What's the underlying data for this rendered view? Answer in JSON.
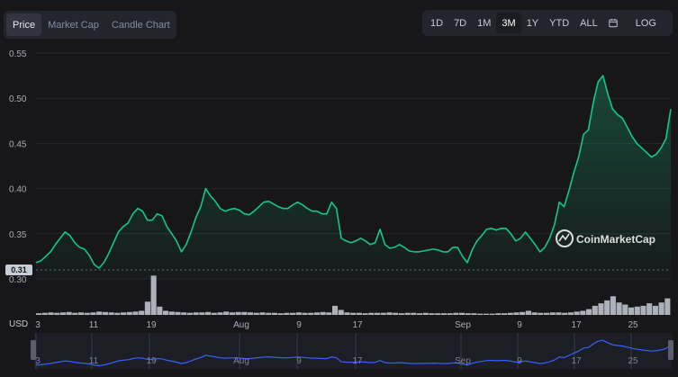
{
  "tabs": [
    {
      "label": "Price",
      "active": true
    },
    {
      "label": "Market Cap",
      "active": false
    },
    {
      "label": "Candle Chart",
      "active": false
    }
  ],
  "ranges": [
    {
      "label": "1D",
      "active": false
    },
    {
      "label": "7D",
      "active": false
    },
    {
      "label": "1M",
      "active": false
    },
    {
      "label": "3M",
      "active": true
    },
    {
      "label": "1Y",
      "active": false
    },
    {
      "label": "YTD",
      "active": false
    },
    {
      "label": "ALL",
      "active": false
    }
  ],
  "calendar_icon": "calendar-icon",
  "log_label": "LOG",
  "currency": "USD",
  "watermark": "CoinMarketCap",
  "current_price_label": "0.31",
  "colors": {
    "line": "#16c784",
    "accent_blue": "#3861fb",
    "bg": "#17171a"
  },
  "chart_data": {
    "type": "line",
    "ylim": [
      0.3,
      0.55
    ],
    "y_ticks": [
      "0.30",
      "0.35",
      "0.40",
      "0.45",
      "0.50",
      "0.55"
    ],
    "x_ticks": [
      "3",
      "11",
      "19",
      "Aug",
      "9",
      "17",
      "Sep",
      "9",
      "17",
      "25"
    ],
    "nav_ticks": [
      "3",
      "11",
      "19",
      "Aug",
      "9",
      "17",
      "Sep",
      "9",
      "17",
      "25"
    ],
    "grid": true,
    "price": [
      0.318,
      0.32,
      0.325,
      0.33,
      0.338,
      0.345,
      0.352,
      0.348,
      0.34,
      0.335,
      0.333,
      0.326,
      0.316,
      0.312,
      0.318,
      0.328,
      0.34,
      0.352,
      0.358,
      0.362,
      0.372,
      0.378,
      0.375,
      0.365,
      0.365,
      0.372,
      0.37,
      0.358,
      0.35,
      0.342,
      0.33,
      0.338,
      0.352,
      0.368,
      0.38,
      0.4,
      0.392,
      0.386,
      0.378,
      0.375,
      0.377,
      0.378,
      0.376,
      0.372,
      0.371,
      0.375,
      0.38,
      0.385,
      0.386,
      0.383,
      0.38,
      0.378,
      0.378,
      0.382,
      0.385,
      0.382,
      0.378,
      0.375,
      0.375,
      0.372,
      0.372,
      0.385,
      0.378,
      0.345,
      0.342,
      0.34,
      0.342,
      0.345,
      0.342,
      0.338,
      0.34,
      0.355,
      0.338,
      0.334,
      0.335,
      0.338,
      0.335,
      0.331,
      0.33,
      0.33,
      0.331,
      0.332,
      0.333,
      0.332,
      0.33,
      0.33,
      0.335,
      0.335,
      0.325,
      0.318,
      0.332,
      0.342,
      0.348,
      0.355,
      0.356,
      0.354,
      0.356,
      0.356,
      0.35,
      0.342,
      0.345,
      0.352,
      0.345,
      0.338,
      0.33,
      0.335,
      0.345,
      0.36,
      0.385,
      0.38,
      0.398,
      0.418,
      0.435,
      0.46,
      0.465,
      0.495,
      0.518,
      0.525,
      0.505,
      0.488,
      0.482,
      0.478,
      0.468,
      0.458,
      0.45,
      0.445,
      0.44,
      0.435,
      0.438,
      0.445,
      0.455,
      0.488
    ],
    "volume": [
      0.04,
      0.05,
      0.06,
      0.05,
      0.06,
      0.07,
      0.05,
      0.06,
      0.05,
      0.06,
      0.08,
      0.07,
      0.06,
      0.05,
      0.06,
      0.07,
      0.08,
      0.1,
      0.32,
      0.95,
      0.2,
      0.1,
      0.08,
      0.07,
      0.06,
      0.05,
      0.06,
      0.06,
      0.07,
      0.05,
      0.06,
      0.08,
      0.06,
      0.07,
      0.07,
      0.06,
      0.05,
      0.06,
      0.05,
      0.05,
      0.04,
      0.05,
      0.05,
      0.06,
      0.05,
      0.05,
      0.06,
      0.07,
      0.06,
      0.22,
      0.12,
      0.06,
      0.05,
      0.05,
      0.04,
      0.05,
      0.05,
      0.05,
      0.06,
      0.05,
      0.04,
      0.05,
      0.05,
      0.04,
      0.05,
      0.04,
      0.04,
      0.04,
      0.04,
      0.05,
      0.05,
      0.04,
      0.04,
      0.03,
      0.03,
      0.03,
      0.04,
      0.04,
      0.05,
      0.06,
      0.07,
      0.1,
      0.06,
      0.05,
      0.05,
      0.06,
      0.06,
      0.05,
      0.06,
      0.08,
      0.1,
      0.14,
      0.22,
      0.28,
      0.35,
      0.45,
      0.3,
      0.25,
      0.18,
      0.2,
      0.22,
      0.28,
      0.22,
      0.3,
      0.4
    ]
  }
}
